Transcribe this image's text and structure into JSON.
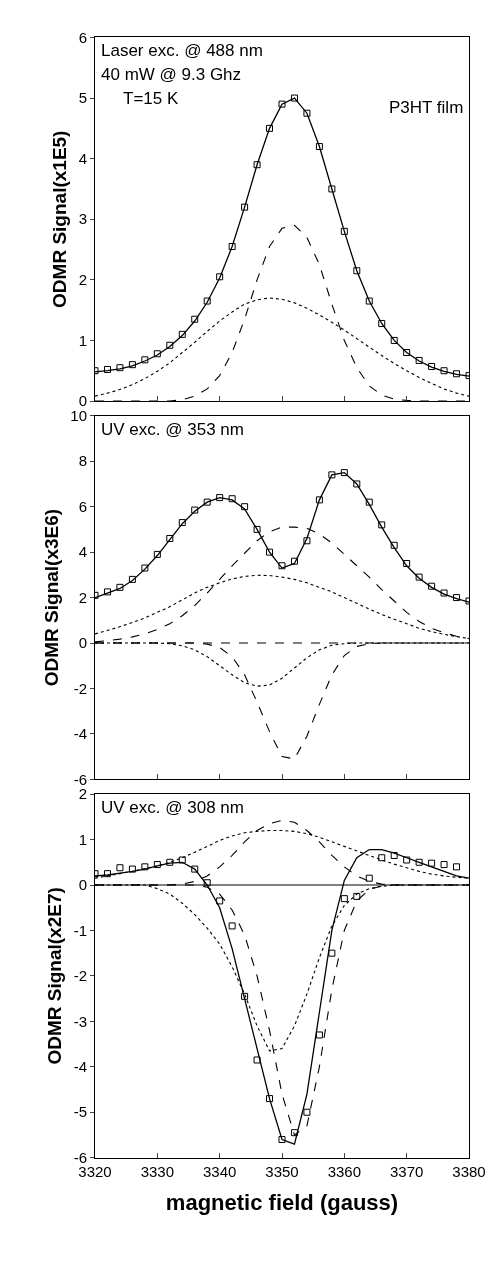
{
  "chart_data": [
    {
      "type": "line",
      "ylabel": "ODMR Signal(x1E5)",
      "annotations": [
        "Laser exc. @ 488 nm",
        "40 mW @ 9.3 Ghz",
        "T=15 K",
        "P3HT film"
      ],
      "x": [
        3320,
        3322,
        3324,
        3326,
        3328,
        3330,
        3332,
        3334,
        3336,
        3338,
        3340,
        3342,
        3344,
        3346,
        3348,
        3350,
        3352,
        3354,
        3356,
        3358,
        3360,
        3362,
        3364,
        3366,
        3368,
        3370,
        3372,
        3374,
        3376,
        3378,
        3380
      ],
      "xlim": [
        3320,
        3380
      ],
      "xticks": [
        3320,
        3330,
        3340,
        3350,
        3360,
        3370,
        3380
      ],
      "ylim": [
        0,
        6
      ],
      "yticks": [
        0,
        1,
        2,
        3,
        4,
        5,
        6
      ],
      "tick_labels": "y",
      "series": [
        {
          "type": "scatter",
          "marker": "square",
          "color": "#000000",
          "values": [
            0.5,
            0.52,
            0.55,
            0.6,
            0.68,
            0.78,
            0.92,
            1.1,
            1.35,
            1.65,
            2.05,
            2.55,
            3.2,
            3.9,
            4.5,
            4.9,
            5.0,
            4.75,
            4.2,
            3.5,
            2.8,
            2.15,
            1.65,
            1.28,
            1.0,
            0.8,
            0.67,
            0.57,
            0.5,
            0.45,
            0.42
          ]
        },
        {
          "type": "line",
          "line_style": "solid",
          "color": "#000000",
          "values": [
            0.48,
            0.5,
            0.53,
            0.58,
            0.66,
            0.76,
            0.9,
            1.08,
            1.32,
            1.63,
            2.03,
            2.55,
            3.2,
            3.9,
            4.5,
            4.9,
            5.0,
            4.75,
            4.2,
            3.5,
            2.8,
            2.15,
            1.65,
            1.28,
            1.0,
            0.8,
            0.66,
            0.56,
            0.49,
            0.44,
            0.41
          ]
        },
        {
          "type": "line",
          "line_style": "dashed",
          "color": "#000000",
          "values": [
            0,
            0,
            0,
            0,
            0,
            0,
            0,
            0.02,
            0.08,
            0.2,
            0.42,
            0.8,
            1.35,
            2.0,
            2.55,
            2.85,
            2.9,
            2.7,
            2.25,
            1.6,
            1.0,
            0.55,
            0.25,
            0.1,
            0.03,
            0.01,
            0,
            0,
            0,
            0,
            0
          ]
        },
        {
          "type": "line",
          "line_style": "dotted",
          "color": "#000000",
          "values": [
            0.08,
            0.13,
            0.19,
            0.27,
            0.37,
            0.49,
            0.63,
            0.8,
            0.97,
            1.15,
            1.32,
            1.47,
            1.6,
            1.67,
            1.7,
            1.68,
            1.62,
            1.53,
            1.42,
            1.3,
            1.17,
            1.03,
            0.89,
            0.75,
            0.62,
            0.5,
            0.39,
            0.29,
            0.2,
            0.13,
            0.08
          ]
        }
      ]
    },
    {
      "type": "line",
      "ylabel": "ODMR Signal(x3E6)",
      "annotations": [
        "UV exc. @ 353 nm"
      ],
      "x": [
        3320,
        3322,
        3324,
        3326,
        3328,
        3330,
        3332,
        3334,
        3336,
        3338,
        3340,
        3342,
        3344,
        3346,
        3348,
        3350,
        3352,
        3354,
        3356,
        3358,
        3360,
        3362,
        3364,
        3366,
        3368,
        3370,
        3372,
        3374,
        3376,
        3378,
        3380
      ],
      "xlim": [
        3320,
        3380
      ],
      "xticks": [
        3320,
        3330,
        3340,
        3350,
        3360,
        3370,
        3380
      ],
      "ylim": [
        -6,
        10
      ],
      "yticks": [
        -6,
        -4,
        -2,
        0,
        2,
        4,
        6,
        8,
        10
      ],
      "tick_labels": "y",
      "ref_lines": [
        {
          "axis": "y",
          "value": 0,
          "color": "#000000",
          "line_style": "dashed"
        }
      ],
      "series": [
        {
          "type": "scatter",
          "marker": "square",
          "color": "#000000",
          "values": [
            2.1,
            2.25,
            2.45,
            2.8,
            3.3,
            3.9,
            4.6,
            5.3,
            5.85,
            6.2,
            6.4,
            6.35,
            6.0,
            5.0,
            4.0,
            3.4,
            3.6,
            4.5,
            6.3,
            7.4,
            7.5,
            7.0,
            6.2,
            5.2,
            4.3,
            3.5,
            2.9,
            2.5,
            2.2,
            2.0,
            1.85
          ]
        },
        {
          "type": "line",
          "line_style": "solid",
          "color": "#000000",
          "values": [
            2.0,
            2.2,
            2.4,
            2.75,
            3.25,
            3.85,
            4.55,
            5.25,
            5.8,
            6.2,
            6.4,
            6.3,
            5.9,
            5.0,
            4.0,
            3.3,
            3.5,
            4.6,
            6.3,
            7.4,
            7.5,
            7.0,
            6.1,
            5.1,
            4.2,
            3.4,
            2.85,
            2.45,
            2.15,
            1.95,
            1.8
          ]
        },
        {
          "type": "line",
          "line_style": "dashed",
          "color": "#000000",
          "values": [
            0.05,
            0.1,
            0.17,
            0.27,
            0.4,
            0.6,
            0.85,
            1.2,
            1.65,
            2.2,
            2.8,
            3.4,
            3.95,
            4.5,
            4.9,
            5.1,
            5.1,
            5.05,
            4.8,
            4.4,
            3.9,
            3.4,
            2.9,
            2.35,
            1.85,
            1.35,
            0.95,
            0.65,
            0.45,
            0.3,
            0.2
          ]
        },
        {
          "type": "line",
          "line_style": "dotted",
          "color": "#000000",
          "values": [
            0.4,
            0.55,
            0.72,
            0.9,
            1.1,
            1.35,
            1.6,
            1.9,
            2.2,
            2.45,
            2.65,
            2.82,
            2.93,
            2.98,
            2.97,
            2.9,
            2.8,
            2.65,
            2.45,
            2.25,
            2.0,
            1.75,
            1.5,
            1.25,
            1.05,
            0.85,
            0.65,
            0.5,
            0.38,
            0.28,
            0.2
          ]
        },
        {
          "type": "line",
          "line_style": "dashed",
          "color": "#000000",
          "values": [
            0,
            0,
            0,
            0,
            0,
            0,
            0,
            0,
            0,
            -0.05,
            -0.2,
            -0.6,
            -1.4,
            -2.6,
            -3.9,
            -5.0,
            -5.1,
            -4.1,
            -2.7,
            -1.4,
            -0.55,
            -0.15,
            -0.03,
            0,
            0,
            0,
            0,
            0,
            0,
            0,
            0
          ]
        },
        {
          "type": "line",
          "line_style": "dotted",
          "color": "#000000",
          "values": [
            0,
            0,
            0,
            0,
            0,
            0,
            -0.03,
            -0.12,
            -0.3,
            -0.6,
            -1.0,
            -1.4,
            -1.75,
            -1.9,
            -1.85,
            -1.55,
            -1.1,
            -0.65,
            -0.3,
            -0.1,
            -0.03,
            0,
            0,
            0,
            0,
            0,
            0,
            0,
            0,
            0,
            0
          ]
        }
      ]
    },
    {
      "type": "line",
      "ylabel": "ODMR Signal(x2E7)",
      "xlabel": "magnetic field (gauss)",
      "annotations": [
        "UV exc. @ 308 nm"
      ],
      "x": [
        3320,
        3322,
        3324,
        3326,
        3328,
        3330,
        3332,
        3334,
        3336,
        3338,
        3340,
        3342,
        3344,
        3346,
        3348,
        3350,
        3352,
        3354,
        3356,
        3358,
        3360,
        3362,
        3364,
        3366,
        3368,
        3370,
        3372,
        3374,
        3376,
        3378,
        3380
      ],
      "xlim": [
        3320,
        3380
      ],
      "xticks": [
        3320,
        3330,
        3340,
        3350,
        3360,
        3370,
        3380
      ],
      "ylim": [
        -6,
        2
      ],
      "yticks": [
        -6,
        -5,
        -4,
        -3,
        -2,
        -1,
        0,
        1,
        2
      ],
      "ref_lines": [
        {
          "axis": "y",
          "value": 0,
          "color": "#000000",
          "line_style": "solid"
        }
      ],
      "series": [
        {
          "type": "scatter",
          "marker": "square",
          "color": "#000000",
          "values": [
            0.25,
            0.25,
            0.38,
            0.35,
            0.4,
            0.45,
            0.5,
            0.55,
            0.35,
            0.05,
            -0.35,
            -0.9,
            -2.45,
            -3.85,
            -4.7,
            -5.6,
            -5.45,
            -5.0,
            -3.3,
            -1.5,
            -0.3,
            -0.25,
            0.15,
            0.6,
            0.65,
            0.55,
            0.5,
            0.48,
            0.45,
            0.4,
            null
          ]
        },
        {
          "type": "line",
          "line_style": "solid",
          "color": "#000000",
          "values": [
            0.2,
            0.22,
            0.26,
            0.3,
            0.35,
            0.42,
            0.48,
            0.5,
            0.35,
            0.0,
            -0.5,
            -1.4,
            -2.5,
            -3.6,
            -4.7,
            -5.6,
            -5.7,
            -4.6,
            -2.8,
            -1.0,
            0.1,
            0.6,
            0.78,
            0.78,
            0.7,
            0.6,
            0.5,
            0.4,
            0.3,
            0.2,
            0.15
          ]
        },
        {
          "type": "line",
          "line_style": "dotted",
          "color": "#000000",
          "values": [
            0.15,
            0.2,
            0.25,
            0.3,
            0.36,
            0.42,
            0.5,
            0.6,
            0.72,
            0.85,
            0.98,
            1.08,
            1.15,
            1.18,
            1.2,
            1.2,
            1.18,
            1.13,
            1.05,
            0.95,
            0.85,
            0.75,
            0.65,
            0.55,
            0.46,
            0.38,
            0.3,
            0.24,
            0.2,
            0.17,
            0.15
          ]
        },
        {
          "type": "line",
          "line_style": "dashed",
          "color": "#000000",
          "values": [
            0,
            0,
            0,
            0,
            0,
            0,
            0,
            0.02,
            0.08,
            0.2,
            0.4,
            0.65,
            0.95,
            1.2,
            1.35,
            1.42,
            1.38,
            1.2,
            0.95,
            0.65,
            0.4,
            0.2,
            0.08,
            0.02,
            0,
            0,
            0,
            0,
            0,
            0,
            0
          ]
        },
        {
          "type": "line",
          "line_style": "dotted",
          "color": "#000000",
          "values": [
            0,
            0,
            0,
            0,
            0,
            -0.08,
            -0.2,
            -0.4,
            -0.65,
            -0.95,
            -1.3,
            -1.8,
            -2.4,
            -3.1,
            -3.65,
            -3.6,
            -3.1,
            -2.4,
            -1.6,
            -0.9,
            -0.45,
            -0.2,
            -0.08,
            -0.03,
            0,
            0,
            0,
            0,
            0,
            0,
            0
          ]
        },
        {
          "type": "line",
          "line_style": "dashed",
          "color": "#000000",
          "values": [
            0,
            0,
            0,
            0,
            0,
            0,
            0,
            0,
            0,
            -0.05,
            -0.2,
            -0.55,
            -1.1,
            -2.0,
            -3.2,
            -4.6,
            -5.5,
            -5.3,
            -4.0,
            -2.3,
            -1.0,
            -0.35,
            -0.1,
            -0.02,
            0,
            0,
            0,
            0,
            0,
            0,
            0
          ]
        }
      ]
    }
  ]
}
